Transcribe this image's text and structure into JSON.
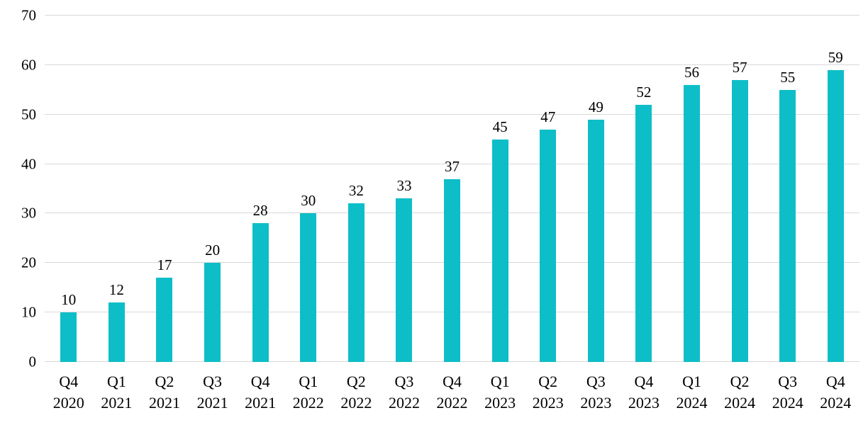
{
  "chart_data": {
    "type": "bar",
    "title": "",
    "xlabel": "",
    "ylabel": "",
    "categories": [
      {
        "quarter": "Q4",
        "year": "2020"
      },
      {
        "quarter": "Q1",
        "year": "2021"
      },
      {
        "quarter": "Q2",
        "year": "2021"
      },
      {
        "quarter": "Q3",
        "year": "2021"
      },
      {
        "quarter": "Q4",
        "year": "2021"
      },
      {
        "quarter": "Q1",
        "year": "2022"
      },
      {
        "quarter": "Q2",
        "year": "2022"
      },
      {
        "quarter": "Q3",
        "year": "2022"
      },
      {
        "quarter": "Q4",
        "year": "2022"
      },
      {
        "quarter": "Q1",
        "year": "2023"
      },
      {
        "quarter": "Q2",
        "year": "2023"
      },
      {
        "quarter": "Q3",
        "year": "2023"
      },
      {
        "quarter": "Q4",
        "year": "2023"
      },
      {
        "quarter": "Q1",
        "year": "2024"
      },
      {
        "quarter": "Q2",
        "year": "2024"
      },
      {
        "quarter": "Q3",
        "year": "2024"
      },
      {
        "quarter": "Q4",
        "year": "2024"
      }
    ],
    "values": [
      10,
      12,
      17,
      20,
      28,
      30,
      32,
      33,
      37,
      45,
      47,
      49,
      52,
      56,
      57,
      55,
      59
    ],
    "ylim": [
      0,
      70
    ],
    "yticks": [
      0,
      10,
      20,
      30,
      40,
      50,
      60,
      70
    ],
    "grid": "horizontal",
    "legend": "none",
    "bar_color": "#0dbec8",
    "gridline_color": "#d9d9d9",
    "text_color": "#000000",
    "background_color": "#ffffff"
  }
}
